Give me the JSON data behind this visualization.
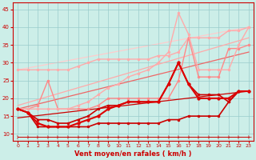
{
  "background_color": "#cceee8",
  "grid_color": "#99cccc",
  "xlabel": "Vent moyen/en rafales ( km/h )",
  "xlim": [
    -0.5,
    23.5
  ],
  "ylim": [
    8,
    47
  ],
  "yticks": [
    10,
    15,
    20,
    25,
    30,
    35,
    40,
    45
  ],
  "xticks": [
    0,
    1,
    2,
    3,
    4,
    5,
    6,
    7,
    8,
    9,
    10,
    11,
    12,
    13,
    14,
    15,
    16,
    17,
    18,
    19,
    20,
    21,
    22,
    23
  ],
  "lines": [
    {
      "x": [
        0,
        23
      ],
      "y": [
        14.5,
        22
      ],
      "color": "#cc0000",
      "lw": 0.9,
      "marker": null,
      "ms": 0,
      "ls": "-",
      "zorder": 2
    },
    {
      "x": [
        0,
        23
      ],
      "y": [
        17,
        33
      ],
      "color": "#ee6666",
      "lw": 0.9,
      "marker": null,
      "ms": 0,
      "ls": "-",
      "zorder": 2
    },
    {
      "x": [
        0,
        23
      ],
      "y": [
        18,
        37
      ],
      "color": "#ffaaaa",
      "lw": 0.9,
      "marker": null,
      "ms": 0,
      "ls": "-",
      "zorder": 2
    },
    {
      "x": [
        0,
        23
      ],
      "y": [
        28,
        40
      ],
      "color": "#ffcccc",
      "lw": 0.9,
      "marker": null,
      "ms": 0,
      "ls": "-",
      "zorder": 1
    },
    {
      "x": [
        0,
        1,
        2,
        3,
        4,
        5,
        6,
        7,
        8,
        9,
        10,
        11,
        12,
        13,
        14,
        15,
        16,
        17,
        18,
        19,
        20,
        21,
        22,
        23
      ],
      "y": [
        28,
        28,
        28,
        28,
        28,
        28,
        29,
        30,
        31,
        31,
        31,
        31,
        31,
        31,
        32,
        32,
        33,
        37,
        37,
        37,
        37,
        39,
        39,
        40
      ],
      "color": "#ffaaaa",
      "lw": 1.0,
      "marker": "o",
      "ms": 2.0,
      "ls": "-",
      "zorder": 3
    },
    {
      "x": [
        0,
        1,
        2,
        3,
        4,
        5,
        6,
        7,
        8,
        9,
        10,
        11,
        12,
        13,
        14,
        15,
        16,
        17,
        18,
        19,
        20,
        21,
        22,
        23
      ],
      "y": [
        17,
        17,
        18,
        25,
        17,
        17,
        17,
        17,
        18,
        20,
        20,
        20,
        20,
        20,
        20,
        20,
        25,
        37,
        26,
        26,
        26,
        34,
        34,
        35
      ],
      "color": "#ff8888",
      "lw": 1.0,
      "marker": "o",
      "ms": 2.0,
      "ls": "-",
      "zorder": 3
    },
    {
      "x": [
        0,
        1,
        2,
        3,
        4,
        5,
        6,
        7,
        8,
        9,
        10,
        11,
        12,
        13,
        14,
        15,
        16,
        17,
        18,
        19,
        20,
        21,
        22,
        23
      ],
      "y": [
        17,
        17,
        17,
        17,
        17,
        17,
        18,
        19,
        21,
        23,
        24,
        26,
        27,
        28,
        30,
        33,
        44,
        38,
        28,
        28,
        28,
        28,
        35,
        40
      ],
      "color": "#ffaaaa",
      "lw": 1.0,
      "marker": "o",
      "ms": 2.0,
      "ls": "-",
      "zorder": 4
    },
    {
      "x": [
        0,
        1,
        2,
        3,
        4,
        5,
        6,
        7,
        8,
        9,
        10,
        11,
        12,
        13,
        14,
        15,
        16,
        17,
        18,
        19,
        20,
        21,
        22,
        23
      ],
      "y": [
        17,
        16,
        14,
        14,
        13,
        13,
        14,
        15,
        17,
        18,
        18,
        19,
        19,
        19,
        19,
        24,
        30,
        24,
        21,
        21,
        21,
        19,
        22,
        22
      ],
      "color": "#cc0000",
      "lw": 1.2,
      "marker": "o",
      "ms": 2.0,
      "ls": "-",
      "zorder": 5
    },
    {
      "x": [
        0,
        1,
        2,
        3,
        4,
        5,
        6,
        7,
        8,
        9,
        10,
        11,
        12,
        13,
        14,
        15,
        16,
        17,
        18,
        19,
        20,
        21,
        22,
        23
      ],
      "y": [
        17,
        16,
        12,
        12,
        12,
        12,
        12,
        12,
        13,
        13,
        13,
        13,
        13,
        13,
        13,
        14,
        14,
        15,
        15,
        15,
        15,
        19,
        22,
        22
      ],
      "color": "#cc0000",
      "lw": 1.2,
      "marker": "o",
      "ms": 2.0,
      "ls": "-",
      "zorder": 5
    },
    {
      "x": [
        0,
        1,
        2,
        3,
        4,
        5,
        6,
        7,
        8,
        9,
        10,
        11,
        12,
        13,
        14,
        15,
        16,
        17,
        18,
        19,
        20,
        21,
        22,
        23
      ],
      "y": [
        17,
        16,
        13,
        12,
        12,
        12,
        13,
        14,
        15,
        17,
        18,
        19,
        19,
        19,
        19,
        24,
        30,
        24,
        20,
        20,
        20,
        20,
        22,
        22
      ],
      "color": "#dd0000",
      "lw": 1.5,
      "marker": "o",
      "ms": 2.5,
      "ls": "-",
      "zorder": 6
    },
    {
      "x": [
        0,
        1,
        2,
        3,
        4,
        5,
        6,
        7,
        8,
        9,
        10,
        11,
        12,
        13,
        14,
        15,
        16,
        17,
        18,
        19,
        20,
        21,
        22,
        23
      ],
      "y": [
        9.2,
        9.2,
        9.2,
        9.2,
        9.2,
        9.2,
        9.2,
        9.2,
        9.2,
        9.2,
        9.2,
        9.2,
        9.2,
        9.2,
        9.2,
        9.2,
        9.2,
        9.2,
        9.2,
        9.2,
        9.2,
        9.2,
        9.2,
        9.2
      ],
      "color": "#cc0000",
      "lw": 0.7,
      "marker": "4",
      "ms": 4,
      "ls": "-",
      "zorder": 7
    }
  ],
  "tick_color": "#cc0000",
  "label_color": "#cc0000"
}
